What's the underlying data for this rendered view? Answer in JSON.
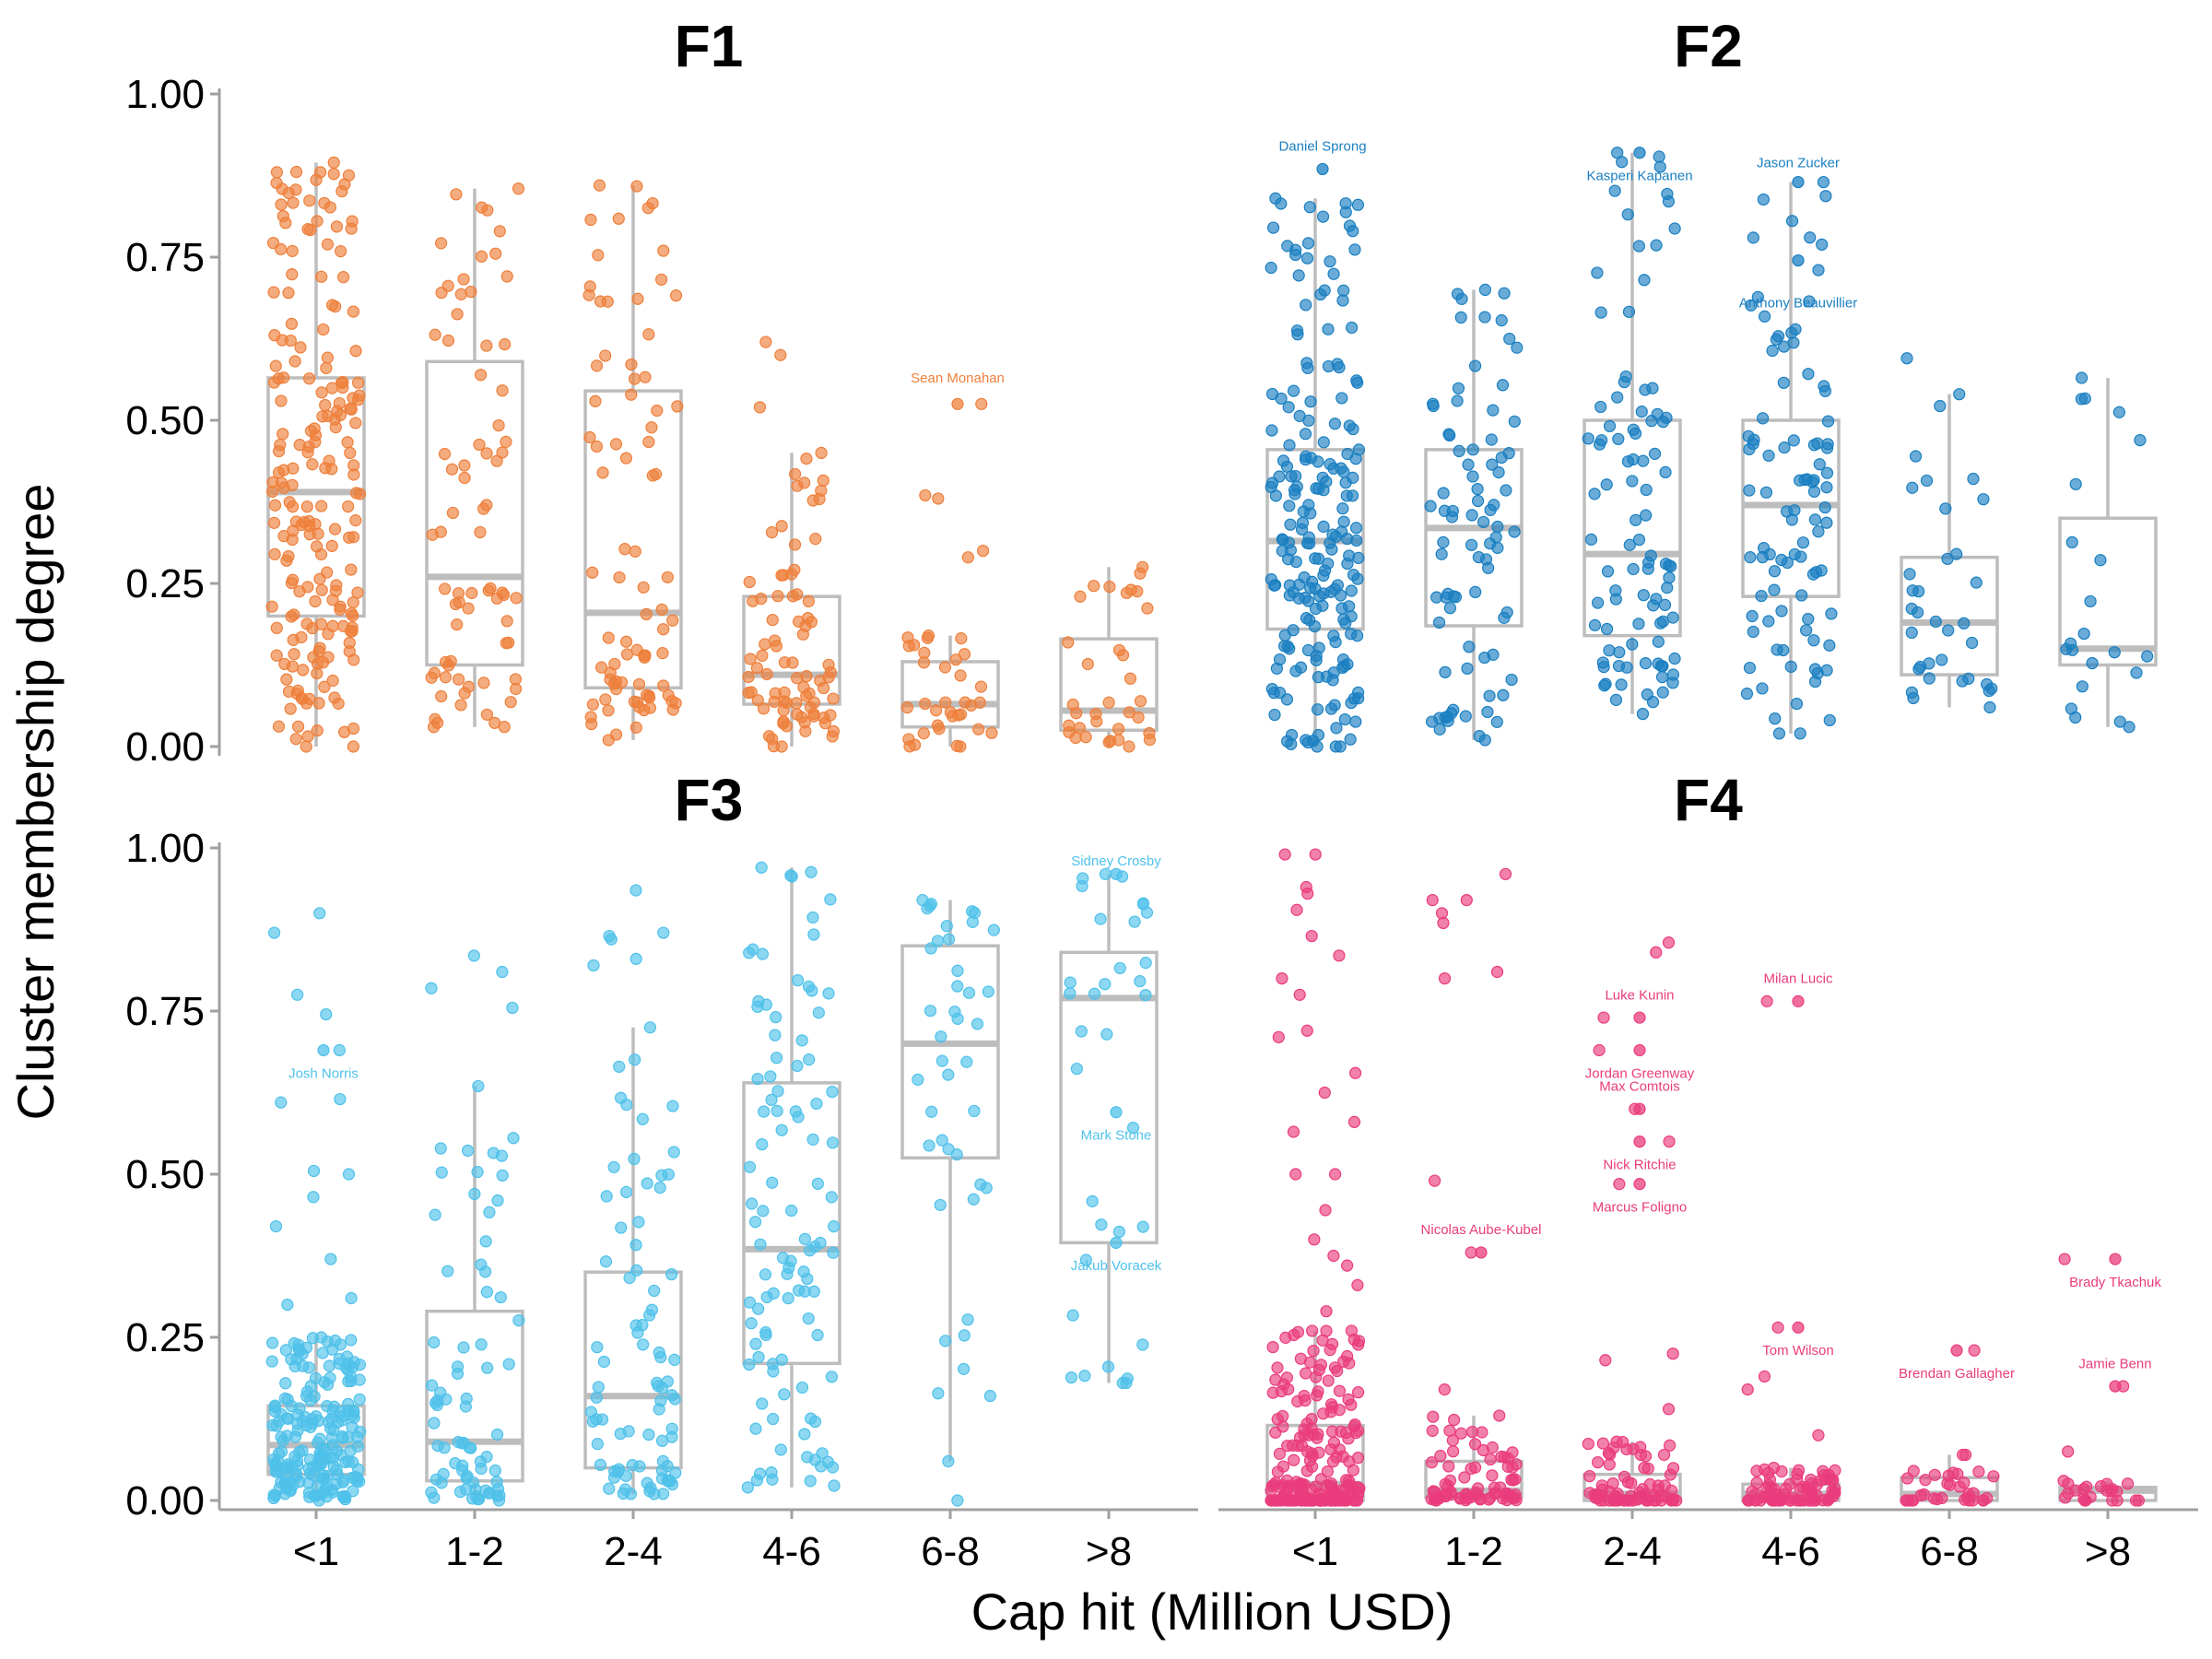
{
  "chart_data": {
    "type": "scatter",
    "subtype": "faceted jittered points with boxplots",
    "xlabel": "Cap hit (Million USD)",
    "ylabel": "Cluster membership degree",
    "categories": [
      "<1",
      "1-2",
      "2-4",
      "4-6",
      "6-8",
      ">8"
    ],
    "ylim": [
      0,
      1
    ],
    "yticks": [
      "0.00",
      "0.25",
      "0.50",
      "0.75",
      "1.00"
    ],
    "ytick_values": [
      0,
      0.25,
      0.5,
      0.75,
      1.0
    ],
    "grid": false,
    "legend": "none",
    "box_color": "#bdbdbd",
    "facets": [
      {
        "title": "F1",
        "color": "#ee7f3b",
        "boxes": [
          {
            "category": "<1",
            "q1": 0.2,
            "median": 0.39,
            "q3": 0.565,
            "lower": 0.0,
            "upper": 0.895,
            "n": 200
          },
          {
            "category": "1-2",
            "q1": 0.125,
            "median": 0.26,
            "q3": 0.59,
            "lower": 0.03,
            "upper": 0.855,
            "n": 70
          },
          {
            "category": "2-4",
            "q1": 0.09,
            "median": 0.205,
            "q3": 0.545,
            "lower": 0.01,
            "upper": 0.86,
            "n": 80
          },
          {
            "category": "4-6",
            "q1": 0.065,
            "median": 0.11,
            "q3": 0.23,
            "lower": 0.0,
            "upper": 0.45,
            "n": 80
          },
          {
            "category": "6-8",
            "q1": 0.03,
            "median": 0.065,
            "q3": 0.13,
            "lower": 0.0,
            "upper": 0.17,
            "n": 30
          },
          {
            "category": ">8",
            "q1": 0.025,
            "median": 0.055,
            "q3": 0.165,
            "lower": 0.0,
            "upper": 0.275,
            "n": 30
          }
        ],
        "outliers": [
          {
            "category": "4-6",
            "value": 0.62
          },
          {
            "category": "4-6",
            "value": 0.6
          },
          {
            "category": "4-6",
            "value": 0.52
          },
          {
            "category": "6-8",
            "value": 0.525
          },
          {
            "category": "6-8",
            "value": 0.385
          },
          {
            "category": "6-8",
            "value": 0.38
          },
          {
            "category": "6-8",
            "value": 0.3
          },
          {
            "category": "6-8",
            "value": 0.29
          }
        ],
        "annotations": [
          {
            "label": "Sean Monahan",
            "category": "6-8",
            "value": 0.525,
            "label_value": 0.565
          }
        ]
      },
      {
        "title": "F2",
        "color": "#1a7fc1",
        "boxes": [
          {
            "category": "<1",
            "q1": 0.18,
            "median": 0.315,
            "q3": 0.455,
            "lower": 0.0,
            "upper": 0.84,
            "n": 200
          },
          {
            "category": "1-2",
            "q1": 0.185,
            "median": 0.335,
            "q3": 0.455,
            "lower": 0.01,
            "upper": 0.7,
            "n": 80
          },
          {
            "category": "2-4",
            "q1": 0.17,
            "median": 0.295,
            "q3": 0.5,
            "lower": 0.05,
            "upper": 0.91,
            "n": 90
          },
          {
            "category": "4-6",
            "q1": 0.23,
            "median": 0.37,
            "q3": 0.5,
            "lower": 0.02,
            "upper": 0.865,
            "n": 90
          },
          {
            "category": "6-8",
            "q1": 0.11,
            "median": 0.19,
            "q3": 0.29,
            "lower": 0.06,
            "upper": 0.54,
            "n": 30
          },
          {
            "category": ">8",
            "q1": 0.125,
            "median": 0.15,
            "q3": 0.35,
            "lower": 0.03,
            "upper": 0.565,
            "n": 20
          }
        ],
        "outliers": [
          {
            "category": "6-8",
            "value": 0.595
          }
        ],
        "annotations": [
          {
            "label": "Daniel Sprong",
            "category": "<1",
            "value": 0.885,
            "label_value": 0.92
          },
          {
            "label": "Kasperi Kapanen",
            "category": "2-4",
            "value": 0.91,
            "label_value": 0.875
          },
          {
            "label": "Jason Zucker",
            "category": "4-6",
            "value": 0.865,
            "label_value": 0.895
          },
          {
            "label": "Anthony Beauvillier",
            "category": "4-6",
            "value": 0.745,
            "label_value": 0.68
          }
        ]
      },
      {
        "title": "F3",
        "color": "#4fc1ea",
        "boxes": [
          {
            "category": "<1",
            "q1": 0.04,
            "median": 0.085,
            "q3": 0.145,
            "lower": 0.0,
            "upper": 0.25,
            "n": 200
          },
          {
            "category": "1-2",
            "q1": 0.03,
            "median": 0.09,
            "q3": 0.29,
            "lower": 0.0,
            "upper": 0.635,
            "n": 70
          },
          {
            "category": "2-4",
            "q1": 0.05,
            "median": 0.16,
            "q3": 0.35,
            "lower": 0.01,
            "upper": 0.725,
            "n": 80
          },
          {
            "category": "4-6",
            "q1": 0.21,
            "median": 0.385,
            "q3": 0.64,
            "lower": 0.02,
            "upper": 0.97,
            "n": 100
          },
          {
            "category": "6-8",
            "q1": 0.525,
            "median": 0.7,
            "q3": 0.85,
            "lower": 0.06,
            "upper": 0.92,
            "n": 40
          },
          {
            "category": ">8",
            "q1": 0.395,
            "median": 0.77,
            "q3": 0.84,
            "lower": 0.18,
            "upper": 0.96,
            "n": 30
          }
        ],
        "outliers": [
          {
            "category": "<1",
            "value": 0.9
          },
          {
            "category": "<1",
            "value": 0.87
          },
          {
            "category": "<1",
            "value": 0.775
          },
          {
            "category": "<1",
            "value": 0.745
          },
          {
            "category": "<1",
            "value": 0.69
          },
          {
            "category": "<1",
            "value": 0.615
          },
          {
            "category": "<1",
            "value": 0.61
          },
          {
            "category": "<1",
            "value": 0.505
          },
          {
            "category": "<1",
            "value": 0.5
          },
          {
            "category": "<1",
            "value": 0.465
          },
          {
            "category": "<1",
            "value": 0.42
          },
          {
            "category": "<1",
            "value": 0.37
          },
          {
            "category": "<1",
            "value": 0.31
          },
          {
            "category": "<1",
            "value": 0.3
          },
          {
            "category": "1-2",
            "value": 0.835
          },
          {
            "category": "1-2",
            "value": 0.81
          },
          {
            "category": "1-2",
            "value": 0.785
          },
          {
            "category": "1-2",
            "value": 0.755
          },
          {
            "category": "2-4",
            "value": 0.935
          },
          {
            "category": "2-4",
            "value": 0.87
          },
          {
            "category": "2-4",
            "value": 0.865
          },
          {
            "category": "2-4",
            "value": 0.86
          },
          {
            "category": "2-4",
            "value": 0.83
          },
          {
            "category": "2-4",
            "value": 0.82
          },
          {
            "category": "6-8",
            "value": 0.0
          }
        ],
        "annotations": [
          {
            "label": "Josh Norris",
            "category": "<1",
            "value": 0.69,
            "label_value": 0.655
          },
          {
            "label": "Sidney Crosby",
            "category": ">8",
            "value": 0.96,
            "label_value": 0.98
          },
          {
            "label": "Mark Stone",
            "category": ">8",
            "value": 0.595,
            "label_value": 0.56
          },
          {
            "label": "Jakub Voracek",
            "category": ">8",
            "value": 0.395,
            "label_value": 0.36
          }
        ]
      },
      {
        "title": "F4",
        "color": "#ea3c7c",
        "boxes": [
          {
            "category": "<1",
            "q1": 0.0,
            "median": 0.025,
            "q3": 0.115,
            "lower": 0.0,
            "upper": 0.26,
            "n": 200
          },
          {
            "category": "1-2",
            "q1": 0.005,
            "median": 0.015,
            "q3": 0.06,
            "lower": 0.0,
            "upper": 0.13,
            "n": 70
          },
          {
            "category": "2-4",
            "q1": 0.0,
            "median": 0.01,
            "q3": 0.04,
            "lower": 0.0,
            "upper": 0.09,
            "n": 70
          },
          {
            "category": "4-6",
            "q1": 0.0,
            "median": 0.01,
            "q3": 0.025,
            "lower": 0.0,
            "upper": 0.05,
            "n": 80
          },
          {
            "category": "6-8",
            "q1": 0.0,
            "median": 0.01,
            "q3": 0.035,
            "lower": 0.0,
            "upper": 0.07,
            "n": 30
          },
          {
            "category": ">8",
            "q1": 0.0,
            "median": 0.015,
            "q3": 0.02,
            "lower": 0.0,
            "upper": 0.03,
            "n": 20
          }
        ],
        "outliers": [
          {
            "category": "<1",
            "value": 0.99
          },
          {
            "category": "<1",
            "value": 0.99
          },
          {
            "category": "<1",
            "value": 0.94
          },
          {
            "category": "<1",
            "value": 0.93
          },
          {
            "category": "<1",
            "value": 0.905
          },
          {
            "category": "<1",
            "value": 0.865
          },
          {
            "category": "<1",
            "value": 0.835
          },
          {
            "category": "<1",
            "value": 0.8
          },
          {
            "category": "<1",
            "value": 0.775
          },
          {
            "category": "<1",
            "value": 0.72
          },
          {
            "category": "<1",
            "value": 0.71
          },
          {
            "category": "<1",
            "value": 0.655
          },
          {
            "category": "<1",
            "value": 0.625
          },
          {
            "category": "<1",
            "value": 0.58
          },
          {
            "category": "<1",
            "value": 0.565
          },
          {
            "category": "<1",
            "value": 0.5
          },
          {
            "category": "<1",
            "value": 0.5
          },
          {
            "category": "<1",
            "value": 0.445
          },
          {
            "category": "<1",
            "value": 0.4
          },
          {
            "category": "<1",
            "value": 0.375
          },
          {
            "category": "<1",
            "value": 0.36
          },
          {
            "category": "<1",
            "value": 0.33
          },
          {
            "category": "<1",
            "value": 0.29
          },
          {
            "category": "<1",
            "value": 0.26
          },
          {
            "category": "1-2",
            "value": 0.96
          },
          {
            "category": "1-2",
            "value": 0.92
          },
          {
            "category": "1-2",
            "value": 0.92
          },
          {
            "category": "1-2",
            "value": 0.9
          },
          {
            "category": "1-2",
            "value": 0.885
          },
          {
            "category": "1-2",
            "value": 0.81
          },
          {
            "category": "1-2",
            "value": 0.8
          },
          {
            "category": "1-2",
            "value": 0.49
          },
          {
            "category": "1-2",
            "value": 0.38
          },
          {
            "category": "1-2",
            "value": 0.17
          },
          {
            "category": "2-4",
            "value": 0.855
          },
          {
            "category": "2-4",
            "value": 0.84
          },
          {
            "category": "2-4",
            "value": 0.74
          },
          {
            "category": "2-4",
            "value": 0.69
          },
          {
            "category": "2-4",
            "value": 0.6
          },
          {
            "category": "2-4",
            "value": 0.55
          },
          {
            "category": "2-4",
            "value": 0.485
          },
          {
            "category": "2-4",
            "value": 0.225
          },
          {
            "category": "2-4",
            "value": 0.215
          },
          {
            "category": "2-4",
            "value": 0.14
          },
          {
            "category": "4-6",
            "value": 0.765
          },
          {
            "category": "4-6",
            "value": 0.265
          },
          {
            "category": "4-6",
            "value": 0.19
          },
          {
            "category": "4-6",
            "value": 0.17
          },
          {
            "category": "4-6",
            "value": 0.1
          },
          {
            "category": "6-8",
            "value": 0.23
          },
          {
            "category": ">8",
            "value": 0.37
          },
          {
            "category": ">8",
            "value": 0.175
          },
          {
            "category": ">8",
            "value": 0.075
          }
        ],
        "annotations": [
          {
            "label": "Milan Lucic",
            "category": "4-6",
            "value": 0.765,
            "label_value": 0.8
          },
          {
            "label": "Luke Kunin",
            "category": "2-4",
            "value": 0.74,
            "label_value": 0.775
          },
          {
            "label": "Jordan Greenway",
            "category": "2-4",
            "value": 0.69,
            "label_value": 0.655
          },
          {
            "label": "Max Comtois",
            "category": "2-4",
            "value": 0.6,
            "label_value": 0.635
          },
          {
            "label": "Nick Ritchie",
            "category": "2-4",
            "value": 0.55,
            "label_value": 0.515
          },
          {
            "label": "Marcus Foligno",
            "category": "2-4",
            "value": 0.485,
            "label_value": 0.45
          },
          {
            "label": "Nicolas Aube-Kubel",
            "category": "1-2",
            "value": 0.38,
            "label_value": 0.415
          },
          {
            "label": "Brady Tkachuk",
            "category": ">8",
            "value": 0.37,
            "label_value": 0.335
          },
          {
            "label": "Tom Wilson",
            "category": "4-6",
            "value": 0.265,
            "label_value": 0.23
          },
          {
            "label": "Brendan Gallagher",
            "category": "6-8",
            "value": 0.23,
            "label_value": 0.195
          },
          {
            "label": "Jamie Benn",
            "category": ">8",
            "value": 0.175,
            "label_value": 0.21
          }
        ]
      }
    ]
  }
}
